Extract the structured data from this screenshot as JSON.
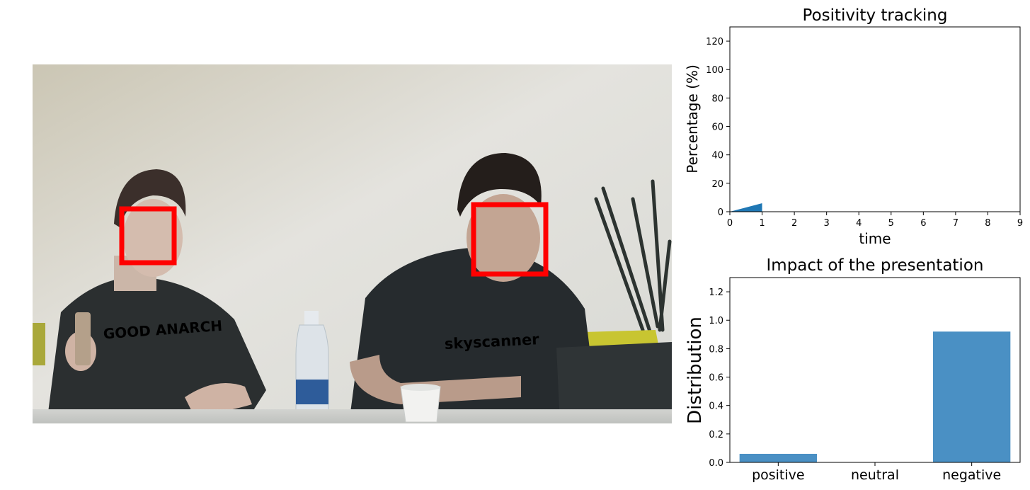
{
  "photo": {
    "shirt_text_right": "skyscanner",
    "shirt_text_left": "GOOD ANARCH",
    "box_color": "#ff0000"
  },
  "chart_data": [
    {
      "type": "area",
      "title": "Positivity tracking",
      "xlabel": "time",
      "ylabel": "Percentage (%)",
      "x": [
        0,
        1
      ],
      "y": [
        0,
        6
      ],
      "xlim": [
        0,
        9
      ],
      "ylim": [
        0,
        130
      ],
      "xticks": [
        "0",
        "1",
        "2",
        "3",
        "4",
        "5",
        "6",
        "7",
        "8",
        "9"
      ],
      "yticks": [
        "0",
        "20",
        "40",
        "60",
        "80",
        "100",
        "120"
      ],
      "color": "#1f77b4",
      "grid": false
    },
    {
      "type": "bar",
      "title": "Impact of the presentation",
      "xlabel": "",
      "ylabel": "Distribution",
      "categories": [
        "positive",
        "neutral",
        "negative"
      ],
      "values": [
        0.06,
        0.0,
        0.92
      ],
      "ylim": [
        0,
        1.3
      ],
      "yticks": [
        "0.0",
        "0.2",
        "0.4",
        "0.6",
        "0.8",
        "1.0",
        "1.2"
      ],
      "color": "#4a90c4",
      "grid": false
    }
  ]
}
